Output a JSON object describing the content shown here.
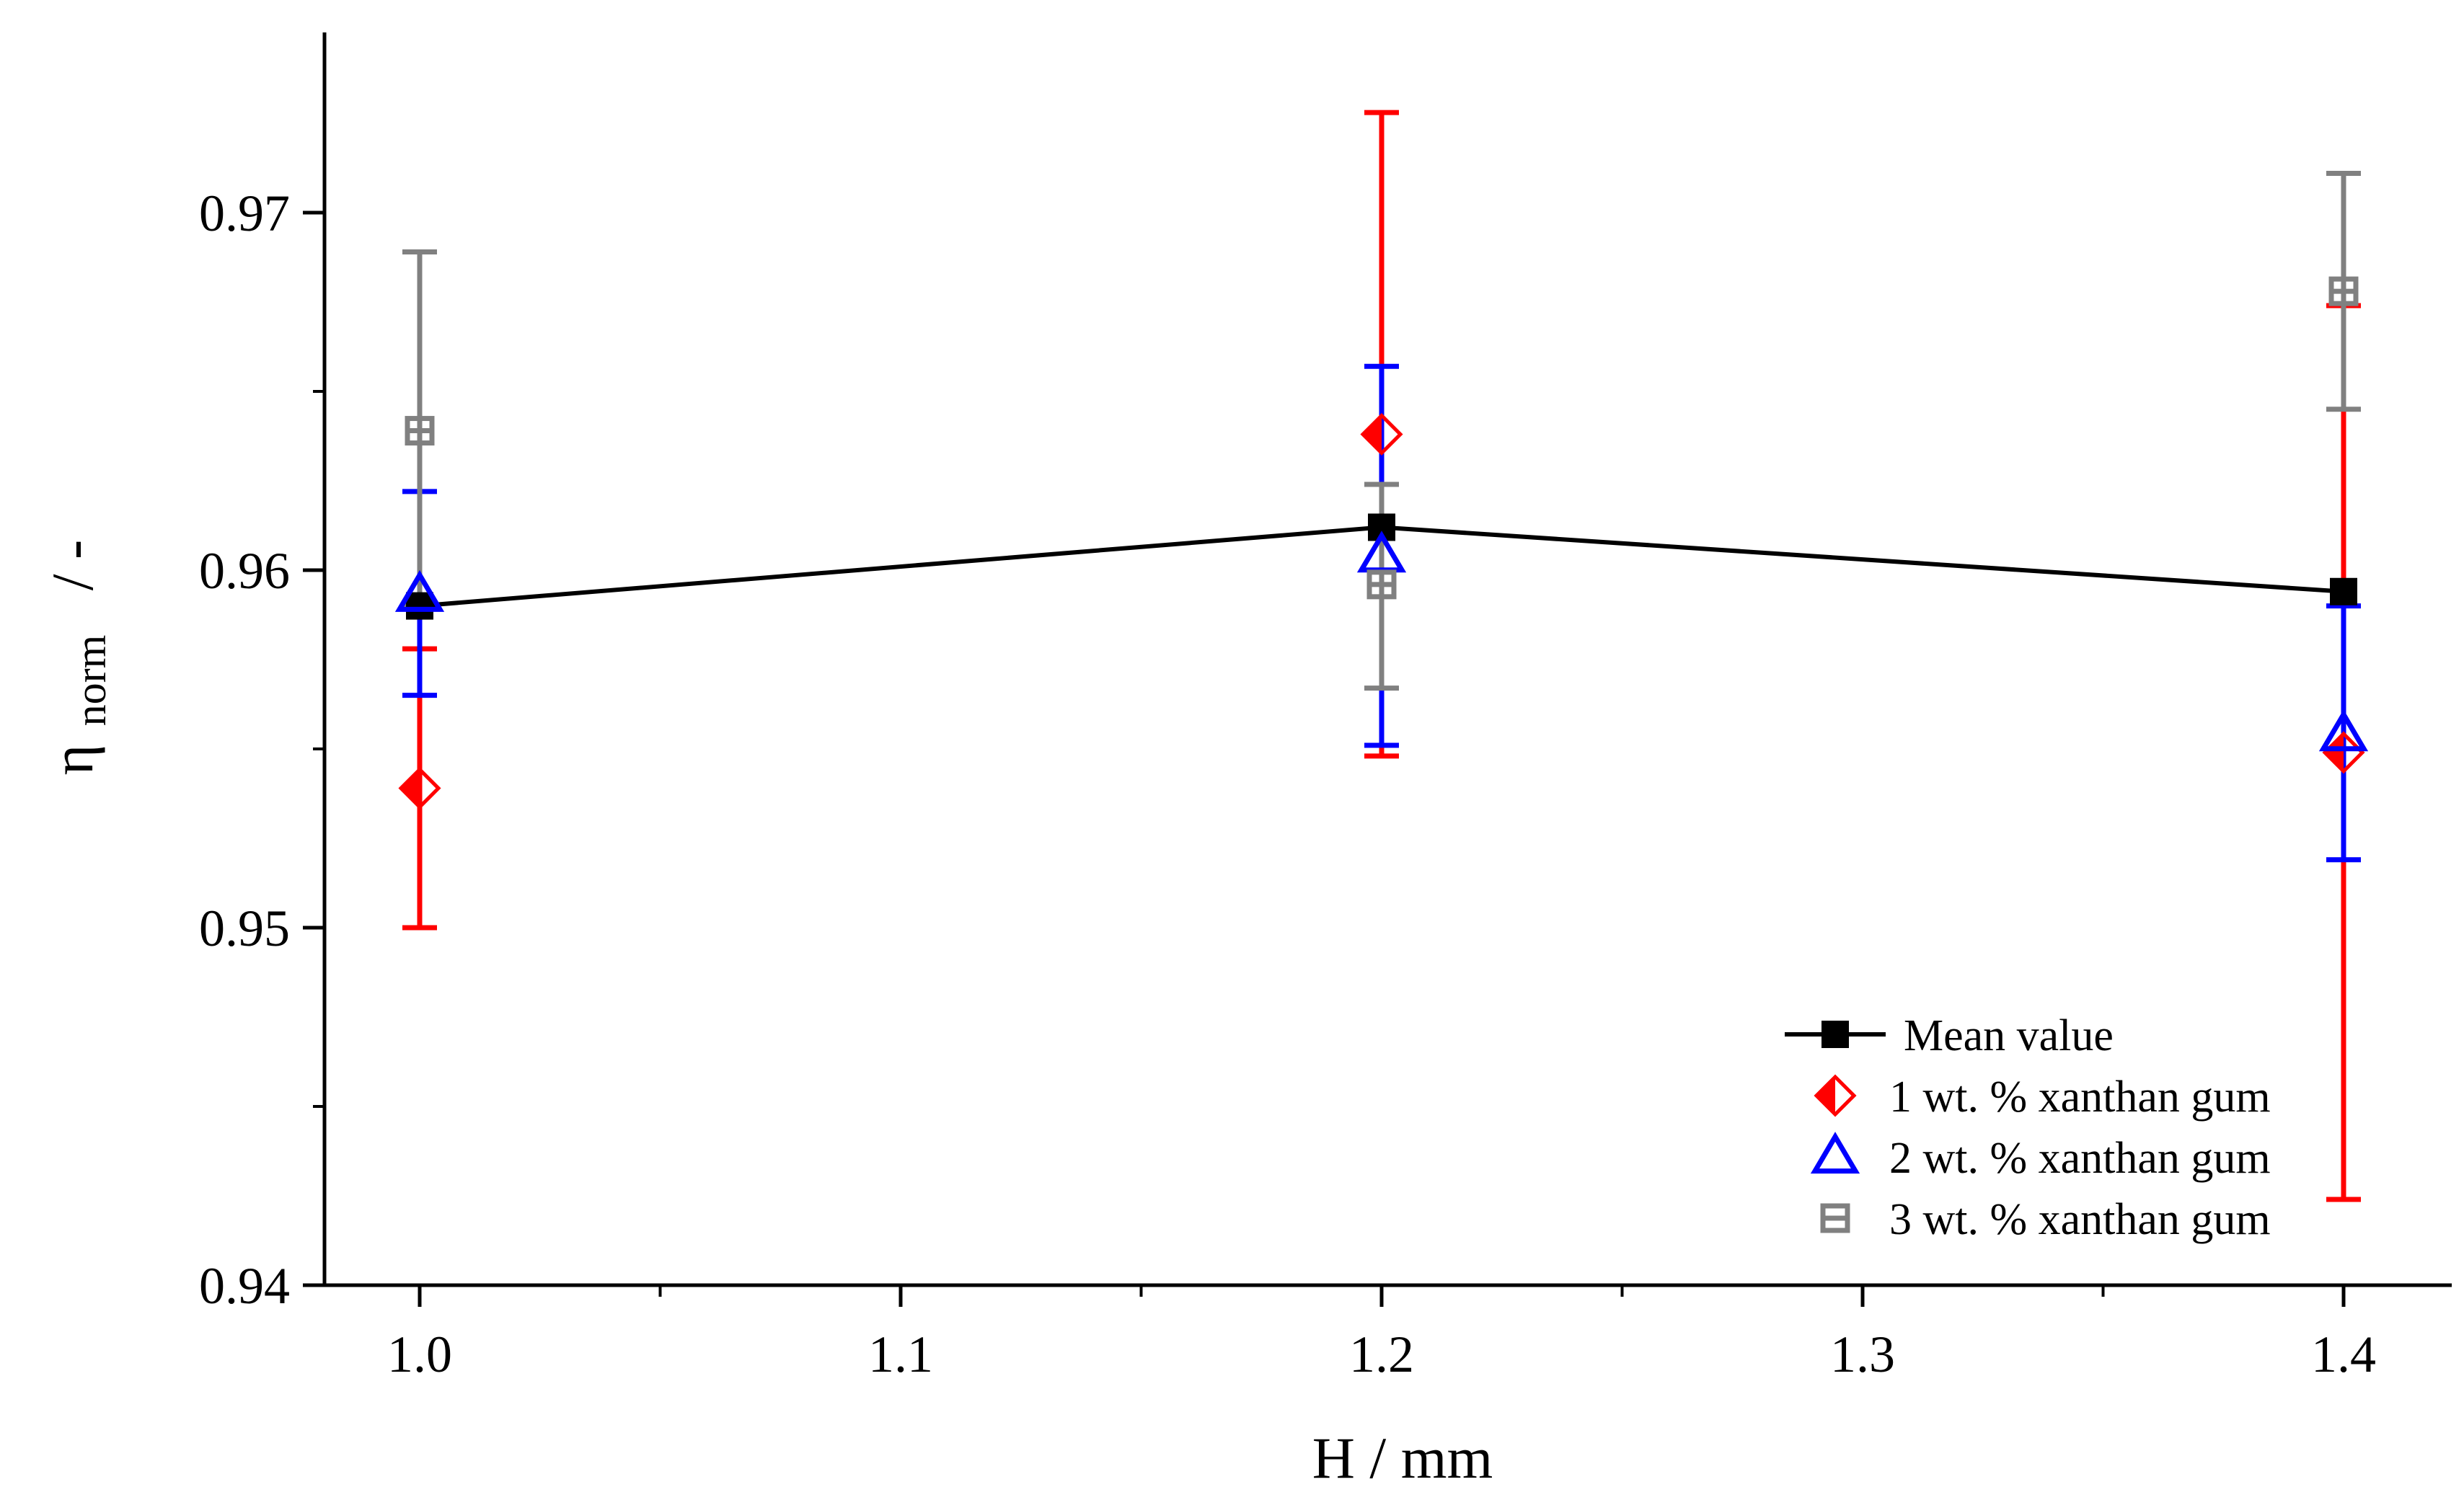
{
  "chart_data": {
    "type": "scatter",
    "title": "",
    "xlabel": "H / mm",
    "ylabel_main": "η",
    "ylabel_sub": "norm",
    "ylabel_unit": "/ -",
    "xlim": [
      0.98,
      1.42
    ],
    "ylim": [
      0.94,
      0.975
    ],
    "x_ticks": [
      1.0,
      1.1,
      1.2,
      1.3,
      1.4
    ],
    "x_tick_labels": [
      "1.0",
      "1.1",
      "1.2",
      "1.3",
      "1.4"
    ],
    "y_ticks": [
      0.94,
      0.95,
      0.96,
      0.97
    ],
    "y_tick_labels": [
      "0.94",
      "0.95",
      "0.96",
      "0.97"
    ],
    "grid": false,
    "legend_position": "bottom-right",
    "series": [
      {
        "name": "Mean value",
        "marker": "square-filled",
        "color": "#000000",
        "connected": true,
        "points": [
          {
            "x": 1.0,
            "y": 0.959
          },
          {
            "x": 1.2,
            "y": 0.9612
          },
          {
            "x": 1.4,
            "y": 0.9594
          }
        ]
      },
      {
        "name": "1 wt. % xanthan gum",
        "marker": "diamond-half",
        "color": "#ff0000",
        "connected": false,
        "points": [
          {
            "x": 1.0,
            "y": 0.9539,
            "err_low": 0.95,
            "err_high": 0.9578
          },
          {
            "x": 1.2,
            "y": 0.9638,
            "err_low": 0.9548,
            "err_high": 0.9728
          },
          {
            "x": 1.4,
            "y": 0.9549,
            "err_low": 0.9424,
            "err_high": 0.9674
          }
        ]
      },
      {
        "name": "2 wt. % xanthan gum",
        "marker": "triangle-open",
        "color": "#0000ff",
        "connected": false,
        "points": [
          {
            "x": 1.0,
            "y": 0.9593,
            "err_low": 0.9565,
            "err_high": 0.9622
          },
          {
            "x": 1.2,
            "y": 0.9604,
            "err_low": 0.9551,
            "err_high": 0.9657
          },
          {
            "x": 1.4,
            "y": 0.9554,
            "err_low": 0.9519,
            "err_high": 0.959
          }
        ]
      },
      {
        "name": "3 wt. % xanthan gum",
        "marker": "square-open-line",
        "color": "#808080",
        "connected": false,
        "points": [
          {
            "x": 1.0,
            "y": 0.9639,
            "err_low": 0.959,
            "err_high": 0.9689
          },
          {
            "x": 1.2,
            "y": 0.9596,
            "err_low": 0.9567,
            "err_high": 0.9624
          },
          {
            "x": 1.4,
            "y": 0.9678,
            "err_low": 0.9645,
            "err_high": 0.9711
          }
        ]
      }
    ]
  }
}
